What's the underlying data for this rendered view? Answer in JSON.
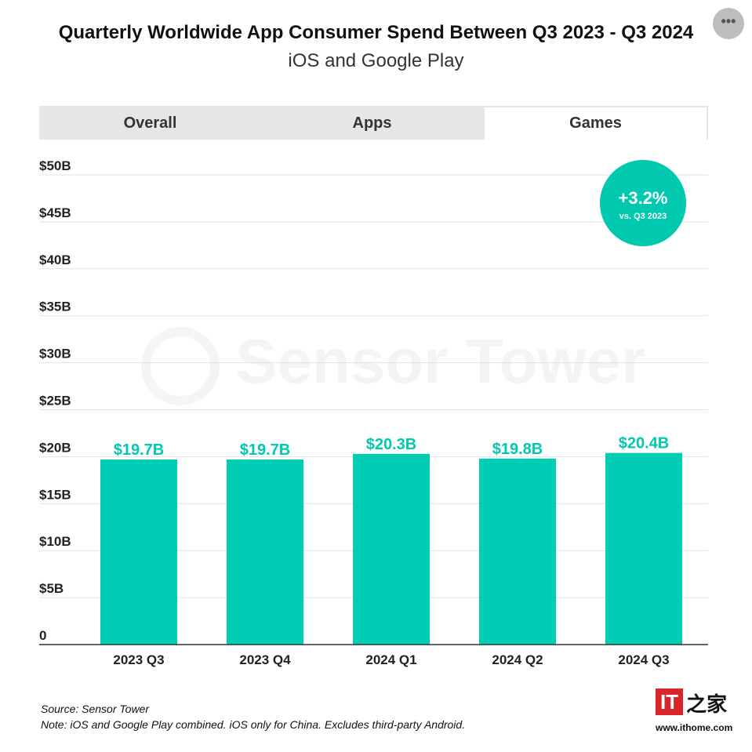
{
  "header": {
    "title": "Quarterly Worldwide App Consumer Spend Between Q3 2023 - Q3 2024",
    "subtitle": "iOS and Google Play",
    "more_icon": "ellipsis-icon",
    "more_label": "•••"
  },
  "tabs": [
    {
      "label": "Overall",
      "active": false
    },
    {
      "label": "Apps",
      "active": false
    },
    {
      "label": "Games",
      "active": true
    }
  ],
  "badge": {
    "value": "+3.2%",
    "caption": "vs. Q3 2023"
  },
  "watermark": "Sensor Tower",
  "chart_data": {
    "type": "bar",
    "categories": [
      "2023 Q3",
      "2023 Q4",
      "2024 Q1",
      "2024 Q2",
      "2024 Q3"
    ],
    "values": [
      19.7,
      19.7,
      20.3,
      19.8,
      20.4
    ],
    "data_labels": [
      "$19.7B",
      "$19.7B",
      "$20.3B",
      "$19.8B",
      "$20.4B"
    ],
    "ylim": [
      0,
      50
    ],
    "yticks": [
      0,
      5,
      10,
      15,
      20,
      25,
      30,
      35,
      40,
      45,
      50
    ],
    "ytick_labels": [
      "0",
      "$5B",
      "$10B",
      "$15B",
      "$20B",
      "$25B",
      "$30B",
      "$35B",
      "$40B",
      "$45B",
      "$50B"
    ],
    "grid": true,
    "bar_color": "#00cdb4"
  },
  "footer": {
    "source": "Source: Sensor Tower",
    "note": "Note: iOS and Google Play combined. iOS only for China. Excludes third-party Android."
  },
  "logo": {
    "text": "IT",
    "zh": "之家",
    "url": "www.ithome.com"
  }
}
